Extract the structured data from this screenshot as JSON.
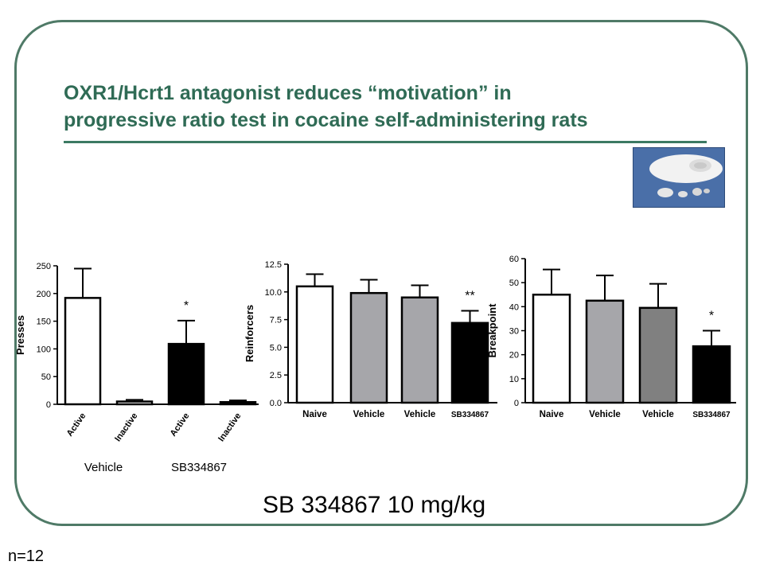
{
  "title_line1": "OXR1/Hcrt1 antagonist reduces “motivation” in",
  "title_line2": "progressive ratio test in cocaine self-administering rats",
  "footer": "SB 334867 10 mg/kg",
  "n_label": "n=12",
  "colors": {
    "frame": "#4f7a67",
    "title": "#2f6b55"
  },
  "chart_data": [
    {
      "type": "bar",
      "ylabel": "Presses",
      "ylim": [
        0,
        250
      ],
      "yticks": [
        "0",
        "50",
        "100",
        "150",
        "200",
        "250"
      ],
      "categories": [
        "Active",
        "Inactive",
        "Active",
        "Inactive"
      ],
      "values": [
        192,
        5,
        109,
        4
      ],
      "errors": [
        53,
        3,
        42,
        3
      ],
      "colors": [
        "#ffffff",
        "#ffffff",
        "#000000",
        "#000000"
      ],
      "significance": [
        "",
        "",
        "*",
        ""
      ],
      "groups": [
        "Vehicle",
        "SB334867"
      ]
    },
    {
      "type": "bar",
      "ylabel": "Reinforcers",
      "ylim": [
        0,
        12.5
      ],
      "yticks": [
        "0.0",
        "2.5",
        "5.0",
        "7.5",
        "10.0",
        "12.5"
      ],
      "categories": [
        "Naive",
        "Vehicle",
        "Vehicle",
        "SB334867"
      ],
      "values": [
        10.5,
        9.9,
        9.5,
        7.2
      ],
      "errors": [
        1.1,
        1.2,
        1.1,
        1.1
      ],
      "colors": [
        "#ffffff",
        "#a6a6aa",
        "#a6a6aa",
        "#000000"
      ],
      "significance": [
        "",
        "",
        "",
        "**"
      ]
    },
    {
      "type": "bar",
      "ylabel": "Breakpoint",
      "ylim": [
        0,
        60
      ],
      "yticks": [
        "0",
        "10",
        "20",
        "30",
        "40",
        "50",
        "60"
      ],
      "categories": [
        "Naive",
        "Vehicle",
        "Vehicle",
        "SB334867"
      ],
      "values": [
        45,
        42.5,
        39.5,
        23.5
      ],
      "errors": [
        10.5,
        10.5,
        10,
        6.5
      ],
      "colors": [
        "#ffffff",
        "#a6a6aa",
        "#808080",
        "#000000"
      ],
      "significance": [
        "",
        "",
        "",
        "*"
      ]
    }
  ]
}
